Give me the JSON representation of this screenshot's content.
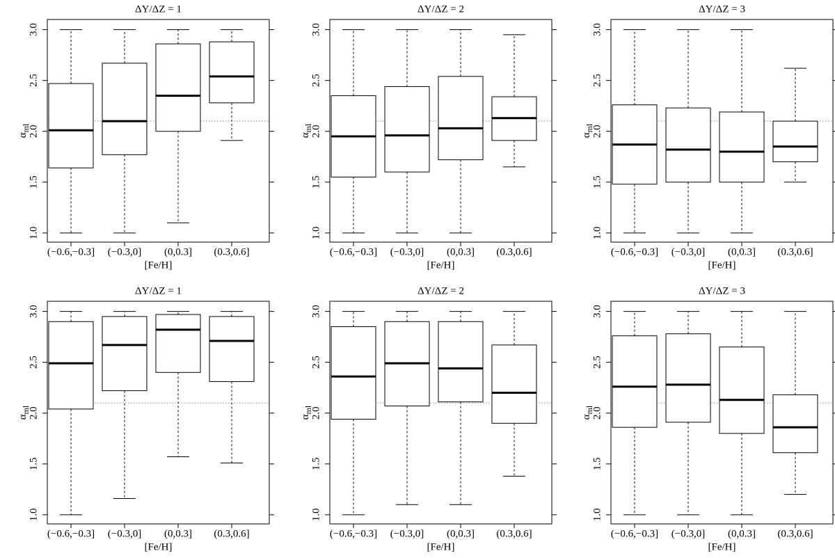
{
  "chart_data": [
    {
      "type": "boxplot",
      "title": "ΔY/ΔZ = 1",
      "xlabel": "[Fe/H]",
      "ylabel": "α",
      "ylabel_sub": "ml",
      "categories": [
        "(−0.6,−0.3]",
        "(−0.3,0]",
        "(0,0.3]",
        "(0.3,0.6]"
      ],
      "stats": [
        [
          1.0,
          1.64,
          2.01,
          2.47,
          3.0
        ],
        [
          1.0,
          1.77,
          2.1,
          2.67,
          3.0
        ],
        [
          1.1,
          2.0,
          2.35,
          2.86,
          3.0
        ],
        [
          1.91,
          2.28,
          2.54,
          2.88,
          3.0
        ]
      ],
      "reference_line": 2.1,
      "ylim": [
        0.91,
        3.1
      ],
      "yticks": [
        {
          "value": 1,
          "label": "1.0"
        },
        {
          "value": 1.5,
          "label": "1.5"
        },
        {
          "value": 2,
          "label": "2.0"
        },
        {
          "value": 2.5,
          "label": "2.5"
        },
        {
          "value": 3,
          "label": "3.0"
        }
      ]
    },
    {
      "type": "boxplot",
      "title": "ΔY/ΔZ = 2",
      "xlabel": "[Fe/H]",
      "ylabel": "α",
      "ylabel_sub": "ml",
      "categories": [
        "(−0.6,−0.3]",
        "(−0.3,0]",
        "(0,0.3]",
        "(0.3,0.6]"
      ],
      "stats": [
        [
          1.0,
          1.55,
          1.95,
          2.35,
          3.0
        ],
        [
          1.0,
          1.6,
          1.96,
          2.44,
          3.0
        ],
        [
          1.0,
          1.72,
          2.03,
          2.54,
          3.0
        ],
        [
          1.65,
          1.91,
          2.13,
          2.34,
          2.95
        ]
      ],
      "reference_line": 2.1,
      "ylim": [
        0.91,
        3.1
      ],
      "yticks": [
        {
          "value": 1,
          "label": "1.0"
        },
        {
          "value": 1.5,
          "label": "1.5"
        },
        {
          "value": 2,
          "label": "2.0"
        },
        {
          "value": 2.5,
          "label": "2.5"
        },
        {
          "value": 3,
          "label": "3.0"
        }
      ]
    },
    {
      "type": "boxplot",
      "title": "ΔY/ΔZ = 3",
      "xlabel": "[Fe/H]",
      "ylabel": "α",
      "ylabel_sub": "ml",
      "categories": [
        "(−0.6,−0.3]",
        "(−0.3,0]",
        "(0,0.3]",
        "(0.3,0.6]"
      ],
      "stats": [
        [
          1.0,
          1.48,
          1.87,
          2.26,
          3.0
        ],
        [
          1.0,
          1.5,
          1.82,
          2.23,
          3.0
        ],
        [
          1.0,
          1.5,
          1.8,
          2.19,
          3.0
        ],
        [
          1.5,
          1.7,
          1.85,
          2.1,
          2.62
        ]
      ],
      "reference_line": 2.1,
      "ylim": [
        0.91,
        3.1
      ],
      "yticks": [
        {
          "value": 1,
          "label": "1.0"
        },
        {
          "value": 1.5,
          "label": "1.5"
        },
        {
          "value": 2,
          "label": "2.0"
        },
        {
          "value": 2.5,
          "label": "2.5"
        },
        {
          "value": 3,
          "label": "3.0"
        }
      ]
    },
    {
      "type": "boxplot",
      "title": "ΔY/ΔZ = 1",
      "xlabel": "[Fe/H]",
      "ylabel": "α",
      "ylabel_sub": "ml",
      "categories": [
        "(−0.6,−0.3]",
        "(−0.3,0]",
        "(0,0.3]",
        "(0.3,0.6]"
      ],
      "stats": [
        [
          1.0,
          2.04,
          2.49,
          2.9,
          3.0
        ],
        [
          1.16,
          2.22,
          2.67,
          2.95,
          3.0
        ],
        [
          1.57,
          2.4,
          2.82,
          2.97,
          3.0
        ],
        [
          1.51,
          2.31,
          2.71,
          2.95,
          3.0
        ]
      ],
      "reference_line": 2.1,
      "ylim": [
        0.91,
        3.1
      ],
      "yticks": [
        {
          "value": 1,
          "label": "1.0"
        },
        {
          "value": 1.5,
          "label": "1.5"
        },
        {
          "value": 2,
          "label": "2.0"
        },
        {
          "value": 2.5,
          "label": "2.5"
        },
        {
          "value": 3,
          "label": "3.0"
        }
      ]
    },
    {
      "type": "boxplot",
      "title": "ΔY/ΔZ = 2",
      "xlabel": "[Fe/H]",
      "ylabel": "α",
      "ylabel_sub": "ml",
      "categories": [
        "(−0.6,−0.3]",
        "(−0.3,0]",
        "(0,0.3]",
        "(0.3,0.6]"
      ],
      "stats": [
        [
          1.0,
          1.94,
          2.36,
          2.85,
          3.0
        ],
        [
          1.1,
          2.07,
          2.49,
          2.9,
          3.0
        ],
        [
          1.1,
          2.11,
          2.44,
          2.9,
          3.0
        ],
        [
          1.38,
          1.9,
          2.2,
          2.67,
          3.0
        ]
      ],
      "reference_line": 2.1,
      "ylim": [
        0.91,
        3.1
      ],
      "yticks": [
        {
          "value": 1,
          "label": "1.0"
        },
        {
          "value": 1.5,
          "label": "1.5"
        },
        {
          "value": 2,
          "label": "2.0"
        },
        {
          "value": 2.5,
          "label": "2.5"
        },
        {
          "value": 3,
          "label": "3.0"
        }
      ]
    },
    {
      "type": "boxplot",
      "title": "ΔY/ΔZ = 3",
      "xlabel": "[Fe/H]",
      "ylabel": "α",
      "ylabel_sub": "ml",
      "categories": [
        "(−0.6,−0.3]",
        "(−0.3,0]",
        "(0,0.3]",
        "(0.3,0.6]"
      ],
      "stats": [
        [
          1.0,
          1.86,
          2.26,
          2.76,
          3.0
        ],
        [
          1.0,
          1.91,
          2.28,
          2.78,
          3.0
        ],
        [
          1.0,
          1.8,
          2.13,
          2.65,
          3.0
        ],
        [
          1.2,
          1.61,
          1.86,
          2.18,
          3.0
        ]
      ],
      "reference_line": 2.1,
      "ylim": [
        0.91,
        3.1
      ],
      "yticks": [
        {
          "value": 1,
          "label": "1.0"
        },
        {
          "value": 1.5,
          "label": "1.5"
        },
        {
          "value": 2,
          "label": "2.0"
        },
        {
          "value": 2.5,
          "label": "2.5"
        },
        {
          "value": 3,
          "label": "3.0"
        }
      ]
    }
  ]
}
